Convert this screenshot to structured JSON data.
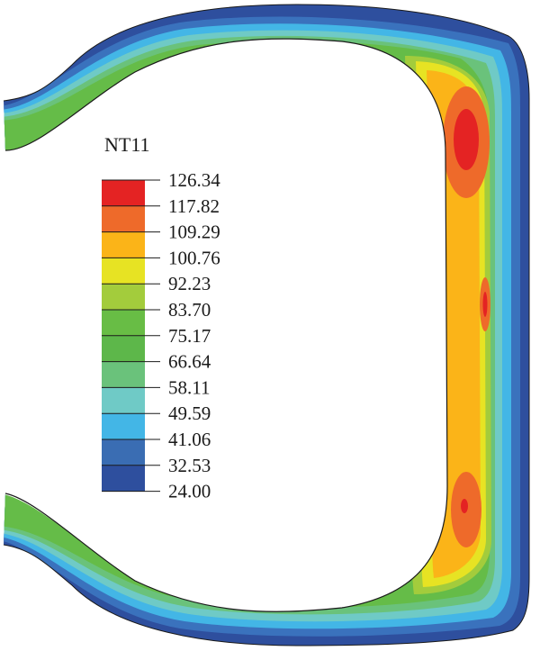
{
  "legend": {
    "title": "NT11",
    "levels": [
      "126.34",
      "117.82",
      "109.29",
      "100.76",
      "92.23",
      "83.70",
      "75.17",
      "66.64",
      "58.11",
      "49.59",
      "41.06",
      "32.53",
      "24.00"
    ],
    "colors": [
      "#e42323",
      "#ee6a2a",
      "#fbb418",
      "#e7e323",
      "#a3cc3c",
      "#68bd45",
      "#5db74a",
      "#6ac27b",
      "#6fcac6",
      "#43b6e6",
      "#3a6db3",
      "#2e4f9e"
    ]
  },
  "contour_palette": {
    "edge": "#2e4f9e",
    "blue": "#3a72bd",
    "light_blue": "#43b6e6",
    "cyan": "#6fcac6",
    "light_green": "#6ac27b",
    "green": "#65bc48",
    "yellow_green": "#a3cc3c",
    "yellow": "#e7e323",
    "orange": "#fbb418",
    "dark_orange": "#ee6a2a",
    "red": "#e42323"
  }
}
